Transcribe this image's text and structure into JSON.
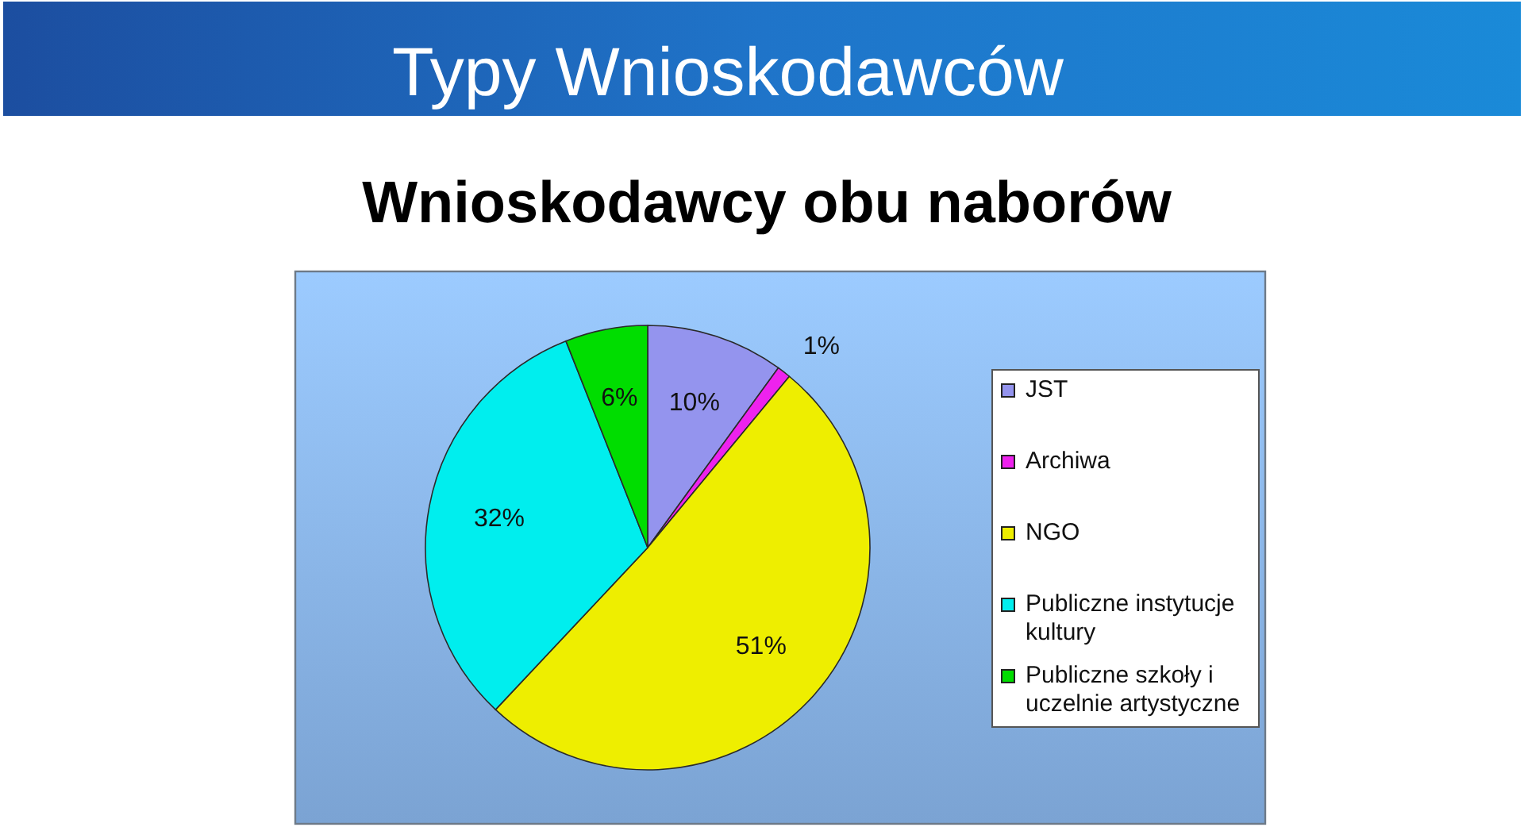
{
  "chart_data": {
    "type": "pie",
    "title": "Typy Wnioskodawców",
    "subtitle": "Wnioskodawcy obu naborów",
    "categories": [
      "JST",
      "Archiwa",
      "NGO",
      "Publiczne instytucje kultury",
      "Publiczne szkoły i uczelnie artystyczne"
    ],
    "values": [
      10,
      1,
      51,
      32,
      6
    ],
    "colors": [
      "#9494ee",
      "#ee22ee",
      "#eeee00",
      "#00eeee",
      "#00dd00"
    ],
    "value_labels": [
      "10%",
      "1%",
      "51%",
      "32%",
      "6%"
    ],
    "legend": "right"
  }
}
